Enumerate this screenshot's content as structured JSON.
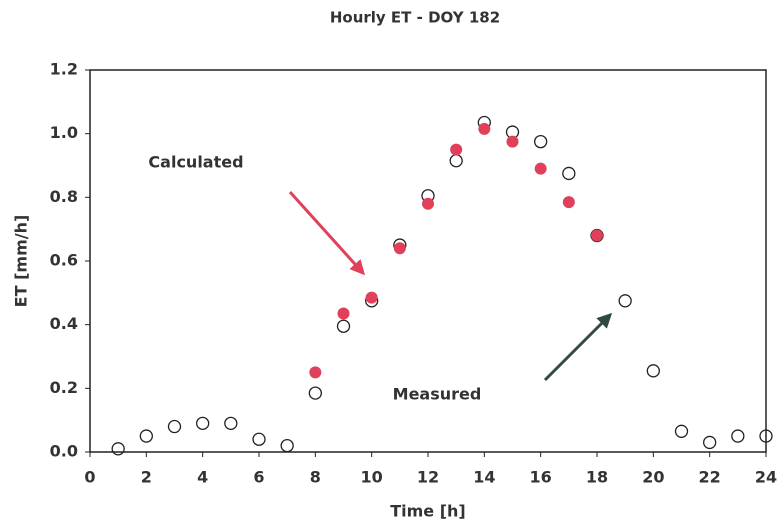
{
  "chart_data": {
    "type": "scatter",
    "title": "Hourly ET - DOY 182",
    "x_label": "Time [h]",
    "y_label": "ET [mm/h]",
    "xlim": [
      0,
      24
    ],
    "xticks": [
      0,
      2,
      4,
      6,
      8,
      10,
      12,
      14,
      16,
      18,
      20,
      22,
      24
    ],
    "ylim": [
      0,
      1.2
    ],
    "yticks": [
      {
        "value": 0,
        "label": "0.0"
      },
      0.2,
      0.4,
      0.6,
      0.8,
      {
        "value": 1,
        "label": "1.0"
      },
      1.2
    ],
    "grid": false,
    "series": [
      {
        "name": "Measured",
        "color": "#222222",
        "marker": "open",
        "x": [
          1,
          2,
          3,
          4,
          5,
          6,
          7,
          8,
          9,
          10,
          11,
          12,
          13,
          14,
          15,
          16,
          17,
          18,
          19,
          20,
          21,
          22,
          23,
          24
        ],
        "values": [
          0.01,
          0.05,
          0.08,
          0.09,
          0.09,
          0.04,
          0.02,
          0.185,
          0.395,
          0.475,
          0.65,
          0.805,
          0.915,
          1.035,
          1.005,
          0.975,
          0.875,
          0.68,
          0.475,
          0.255,
          0.065,
          0.03,
          0.05,
          0.05
        ]
      },
      {
        "name": "Calculated",
        "color": "#e0405a",
        "marker": "filled",
        "x": [
          8,
          9,
          10,
          11,
          12,
          13,
          14,
          15,
          16,
          17,
          18
        ],
        "values": [
          0.25,
          0.435,
          0.485,
          0.64,
          0.78,
          0.95,
          1.015,
          0.975,
          0.89,
          0.785,
          0.68
        ]
      }
    ]
  }
}
